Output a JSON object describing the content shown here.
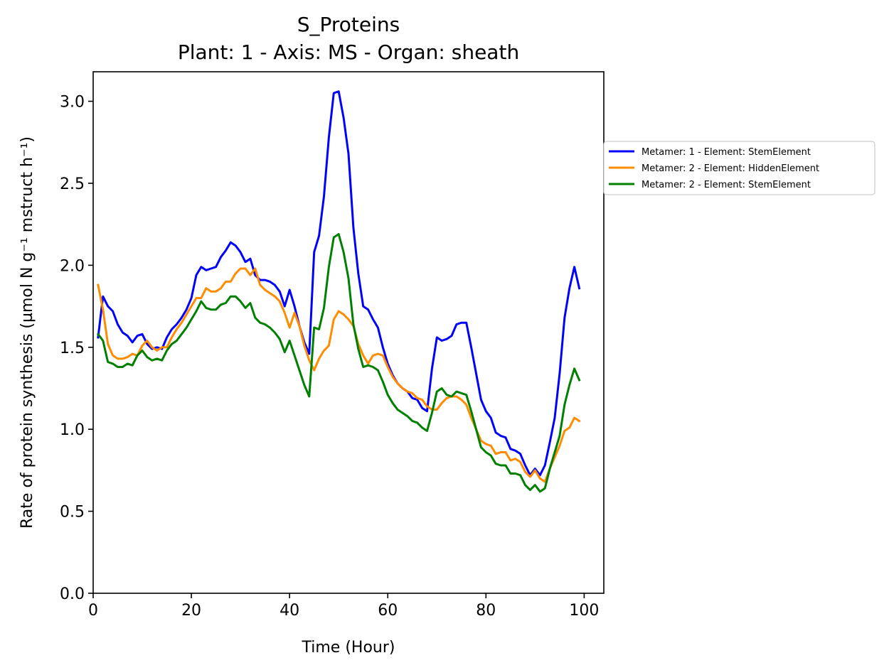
{
  "chart_data": {
    "type": "line",
    "title": "S_Proteins",
    "subtitle": "Plant: 1 - Axis: MS - Organ: sheath",
    "xlabel": "Time (Hour)",
    "ylabel": "Rate of protein synthesis (µmol N g⁻¹ mstruct h⁻¹)",
    "xlim": [
      0,
      104
    ],
    "ylim": [
      0,
      3.18
    ],
    "xticks": [
      0,
      20,
      40,
      60,
      80,
      100
    ],
    "yticks": [
      0.0,
      0.5,
      1.0,
      1.5,
      2.0,
      2.5,
      3.0
    ],
    "xtick_labels": [
      "0",
      "20",
      "40",
      "60",
      "80",
      "100"
    ],
    "ytick_labels": [
      "0.0",
      "0.5",
      "1.0",
      "1.5",
      "2.0",
      "2.5",
      "3.0"
    ],
    "grid": false,
    "legend_position": "outside-right",
    "x": [
      1,
      2,
      3,
      4,
      5,
      6,
      7,
      8,
      9,
      10,
      11,
      12,
      13,
      14,
      15,
      16,
      17,
      18,
      19,
      20,
      21,
      22,
      23,
      24,
      25,
      26,
      27,
      28,
      29,
      30,
      31,
      32,
      33,
      34,
      35,
      36,
      37,
      38,
      39,
      40,
      41,
      42,
      43,
      44,
      45,
      46,
      47,
      48,
      49,
      50,
      51,
      52,
      53,
      54,
      55,
      56,
      57,
      58,
      59,
      60,
      61,
      62,
      63,
      64,
      65,
      66,
      67,
      68,
      69,
      70,
      71,
      72,
      73,
      74,
      75,
      76,
      77,
      78,
      79,
      80,
      81,
      82,
      83,
      84,
      85,
      86,
      87,
      88,
      89,
      90,
      91,
      92,
      93,
      94,
      95,
      96,
      97,
      98,
      99
    ],
    "series": [
      {
        "name": "Metamer: 1 - Element: StemElement",
        "color": "#0000ff",
        "values": [
          1.56,
          1.81,
          1.75,
          1.72,
          1.64,
          1.59,
          1.57,
          1.53,
          1.57,
          1.58,
          1.52,
          1.49,
          1.5,
          1.49,
          1.56,
          1.61,
          1.64,
          1.68,
          1.73,
          1.8,
          1.94,
          1.99,
          1.97,
          1.98,
          1.99,
          2.05,
          2.09,
          2.14,
          2.12,
          2.08,
          2.02,
          2.04,
          1.94,
          1.91,
          1.91,
          1.9,
          1.88,
          1.84,
          1.75,
          1.85,
          1.75,
          1.63,
          1.53,
          1.46,
          2.08,
          2.18,
          2.42,
          2.78,
          3.05,
          3.06,
          2.9,
          2.68,
          2.23,
          1.95,
          1.75,
          1.73,
          1.67,
          1.62,
          1.5,
          1.4,
          1.33,
          1.28,
          1.25,
          1.23,
          1.19,
          1.18,
          1.13,
          1.11,
          1.37,
          1.56,
          1.54,
          1.55,
          1.57,
          1.64,
          1.65,
          1.65,
          1.5,
          1.34,
          1.18,
          1.11,
          1.07,
          0.98,
          0.96,
          0.95,
          0.88,
          0.87,
          0.85,
          0.78,
          0.72,
          0.76,
          0.72,
          0.78,
          0.92,
          1.07,
          1.34,
          1.68,
          1.86,
          1.99,
          1.86
        ]
      },
      {
        "name": "Metamer: 2 - Element: HiddenElement",
        "color": "#ff8c00",
        "values": [
          1.88,
          1.73,
          1.52,
          1.45,
          1.43,
          1.43,
          1.44,
          1.46,
          1.45,
          1.51,
          1.54,
          1.5,
          1.48,
          1.5,
          1.5,
          1.56,
          1.61,
          1.65,
          1.7,
          1.75,
          1.8,
          1.8,
          1.86,
          1.84,
          1.84,
          1.86,
          1.9,
          1.9,
          1.95,
          1.98,
          1.98,
          1.94,
          1.98,
          1.88,
          1.85,
          1.83,
          1.81,
          1.78,
          1.71,
          1.62,
          1.71,
          1.63,
          1.51,
          1.42,
          1.36,
          1.43,
          1.48,
          1.51,
          1.67,
          1.72,
          1.7,
          1.67,
          1.63,
          1.52,
          1.45,
          1.4,
          1.45,
          1.46,
          1.45,
          1.38,
          1.32,
          1.28,
          1.25,
          1.23,
          1.22,
          1.19,
          1.18,
          1.14,
          1.12,
          1.12,
          1.16,
          1.19,
          1.2,
          1.2,
          1.18,
          1.15,
          1.07,
          1.0,
          0.93,
          0.91,
          0.9,
          0.85,
          0.86,
          0.86,
          0.81,
          0.82,
          0.8,
          0.74,
          0.71,
          0.75,
          0.7,
          0.68,
          0.76,
          0.83,
          0.9,
          0.99,
          1.01,
          1.07,
          1.05
        ]
      },
      {
        "name": "Metamer: 2 - Element: StemElement",
        "color": "#008000",
        "values": [
          1.58,
          1.54,
          1.41,
          1.4,
          1.38,
          1.38,
          1.4,
          1.39,
          1.45,
          1.48,
          1.44,
          1.42,
          1.43,
          1.42,
          1.48,
          1.52,
          1.54,
          1.58,
          1.62,
          1.67,
          1.72,
          1.78,
          1.74,
          1.73,
          1.73,
          1.76,
          1.77,
          1.81,
          1.81,
          1.78,
          1.74,
          1.77,
          1.68,
          1.65,
          1.64,
          1.62,
          1.59,
          1.55,
          1.47,
          1.54,
          1.45,
          1.36,
          1.27,
          1.2,
          1.62,
          1.61,
          1.74,
          1.99,
          2.17,
          2.19,
          2.08,
          1.92,
          1.64,
          1.49,
          1.38,
          1.39,
          1.38,
          1.36,
          1.29,
          1.21,
          1.16,
          1.12,
          1.1,
          1.08,
          1.05,
          1.04,
          1.01,
          0.99,
          1.1,
          1.23,
          1.25,
          1.21,
          1.2,
          1.23,
          1.22,
          1.21,
          1.11,
          1.0,
          0.89,
          0.86,
          0.84,
          0.79,
          0.78,
          0.78,
          0.73,
          0.73,
          0.72,
          0.66,
          0.63,
          0.66,
          0.62,
          0.64,
          0.76,
          0.86,
          0.96,
          1.15,
          1.27,
          1.37,
          1.3
        ]
      }
    ]
  }
}
